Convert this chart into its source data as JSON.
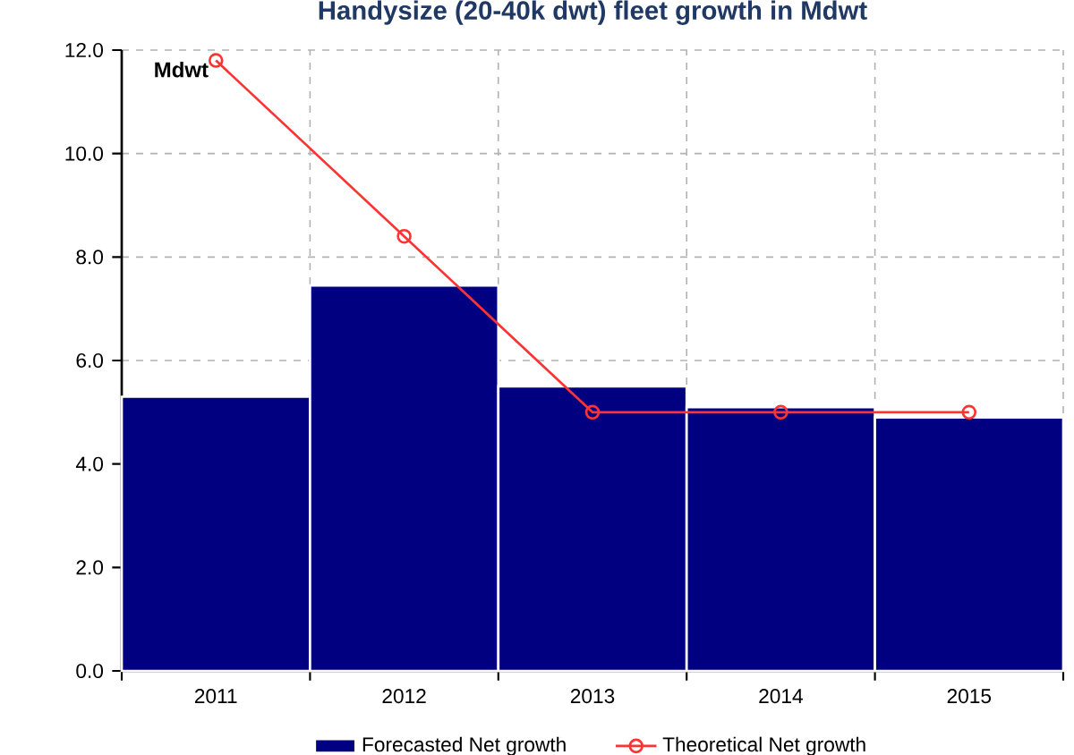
{
  "chart_data": {
    "type": "bar",
    "title": "Handysize (20-40k dwt) fleet growth in Mdwt",
    "ylabel": "Mdwt",
    "categories": [
      "2011",
      "2012",
      "2013",
      "2014",
      "2015"
    ],
    "series": [
      {
        "name": "Forecasted Net growth",
        "color": "#000080",
        "values": [
          5.3,
          7.45,
          5.5,
          5.1,
          4.9
        ]
      },
      {
        "name": "Theoretical Net growth",
        "type": "line",
        "color": "#ff3333",
        "marker": "circle",
        "values": [
          11.8,
          8.4,
          5.0,
          5.0,
          5.0
        ]
      }
    ],
    "ylim": [
      0,
      12
    ],
    "yticks": [
      {
        "value": 0,
        "label": "0.0"
      },
      {
        "value": 2,
        "label": "2.0"
      },
      {
        "value": 4,
        "label": "4.0"
      },
      {
        "value": 6,
        "label": "6.0"
      },
      {
        "value": 8,
        "label": "8.0"
      },
      {
        "value": 10,
        "label": "10.0"
      },
      {
        "value": 12,
        "label": "12.0"
      }
    ],
    "grid": true,
    "legend": "bottom"
  }
}
